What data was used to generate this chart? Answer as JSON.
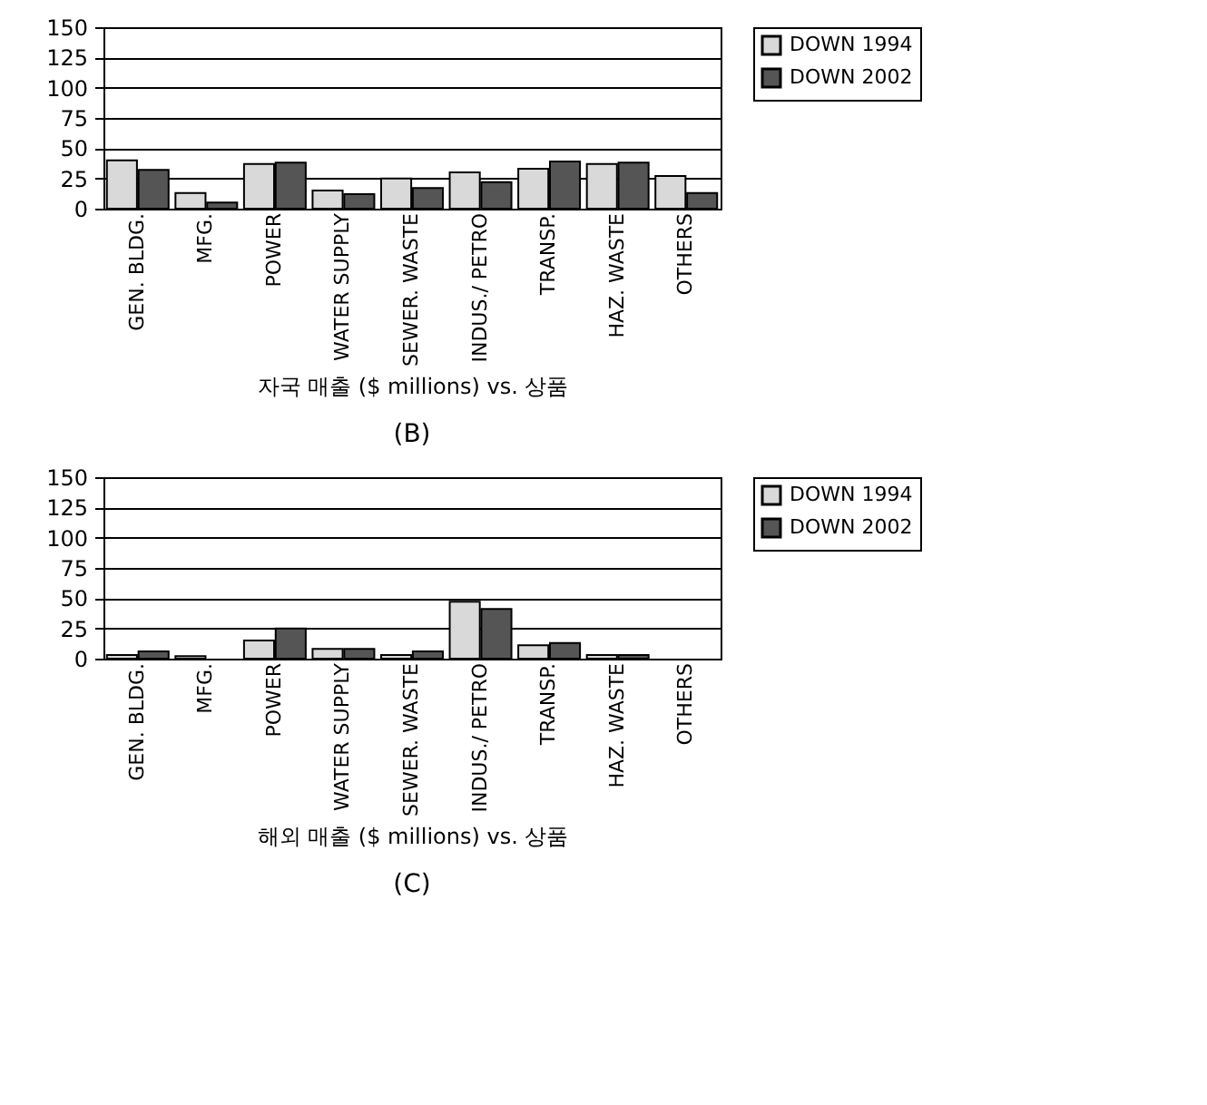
{
  "chart_data": [
    {
      "type": "bar",
      "xlabel": "자국 매출 ($ millions) vs. 상품",
      "categories": [
        "GEN. BLDG.",
        "MFG.",
        "POWER",
        "WATER SUPPLY",
        "SEWER. WASTE",
        "INDUS./ PETRO",
        "TRANSP.",
        "HAZ. WASTE",
        "OTHERS"
      ],
      "series": [
        {
          "name": "DOWN 1994",
          "color": "#d9d9d9",
          "values": [
            40,
            13,
            37,
            15,
            25,
            30,
            33,
            37,
            27
          ]
        },
        {
          "name": "DOWN 2002",
          "color": "#555555",
          "values": [
            32,
            5,
            38,
            12,
            17,
            22,
            39,
            38,
            13
          ]
        }
      ],
      "ylim": [
        0,
        150
      ],
      "yticks": [
        0,
        25,
        50,
        75,
        100,
        125,
        150
      ],
      "grid": "y",
      "legend": "right",
      "annotations": [
        "(B)"
      ]
    },
    {
      "type": "bar",
      "xlabel": "해외 매출 ($ millions) vs. 상품",
      "categories": [
        "GEN. BLDG.",
        "MFG.",
        "POWER",
        "WATER SUPPLY",
        "SEWER. WASTE",
        "INDUS./ PETRO",
        "TRANSP.",
        "HAZ. WASTE",
        "OTHERS"
      ],
      "series": [
        {
          "name": "DOWN 1994",
          "color": "#d9d9d9",
          "values": [
            3,
            2,
            15,
            8,
            3,
            47,
            11,
            3,
            null
          ]
        },
        {
          "name": "DOWN 2002",
          "color": "#555555",
          "values": [
            6,
            null,
            25,
            8,
            6,
            41,
            13,
            3,
            null
          ]
        }
      ],
      "ylim": [
        0,
        150
      ],
      "yticks": [
        0,
        25,
        50,
        75,
        100,
        125,
        150
      ],
      "grid": "y",
      "legend": "right",
      "annotations": [
        "(C)"
      ]
    }
  ]
}
